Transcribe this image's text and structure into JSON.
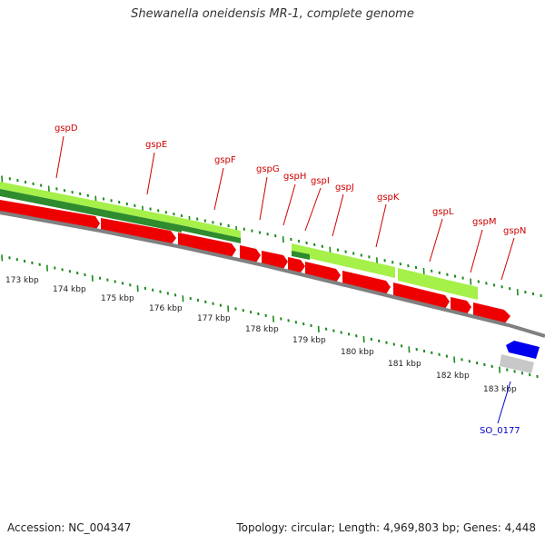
{
  "title": "Shewanella oneidensis MR-1, complete genome",
  "accession": "Accession: NC_004347",
  "summary": "Topology: circular; Length: 4,969,803 bp; Genes: 4,448",
  "colors": {
    "gene_forward": "#ee0000",
    "gene_reverse": "#0000ee",
    "gene_other": "#c8c8c8",
    "cds_light": "#a6f04a",
    "cds_dark": "#2e8b2e",
    "backbone": "#808080",
    "tick": "#1a8a1a",
    "label_red": "#cc0000",
    "label_blue": "#0000cc"
  },
  "kbp_labels": [
    "173 kbp",
    "174 kbp",
    "175 kbp",
    "176 kbp",
    "177 kbp",
    "178 kbp",
    "179 kbp",
    "180 kbp",
    "181 kbp",
    "182 kbp",
    "183 kbp"
  ],
  "genes": [
    {
      "name": "gspD"
    },
    {
      "name": "gspE"
    },
    {
      "name": "gspF"
    },
    {
      "name": "gspG"
    },
    {
      "name": "gspH"
    },
    {
      "name": "gspI"
    },
    {
      "name": "gspJ"
    },
    {
      "name": "gspK"
    },
    {
      "name": "gspL"
    },
    {
      "name": "gspM"
    },
    {
      "name": "gspN"
    },
    {
      "name": "SO_0177"
    }
  ]
}
